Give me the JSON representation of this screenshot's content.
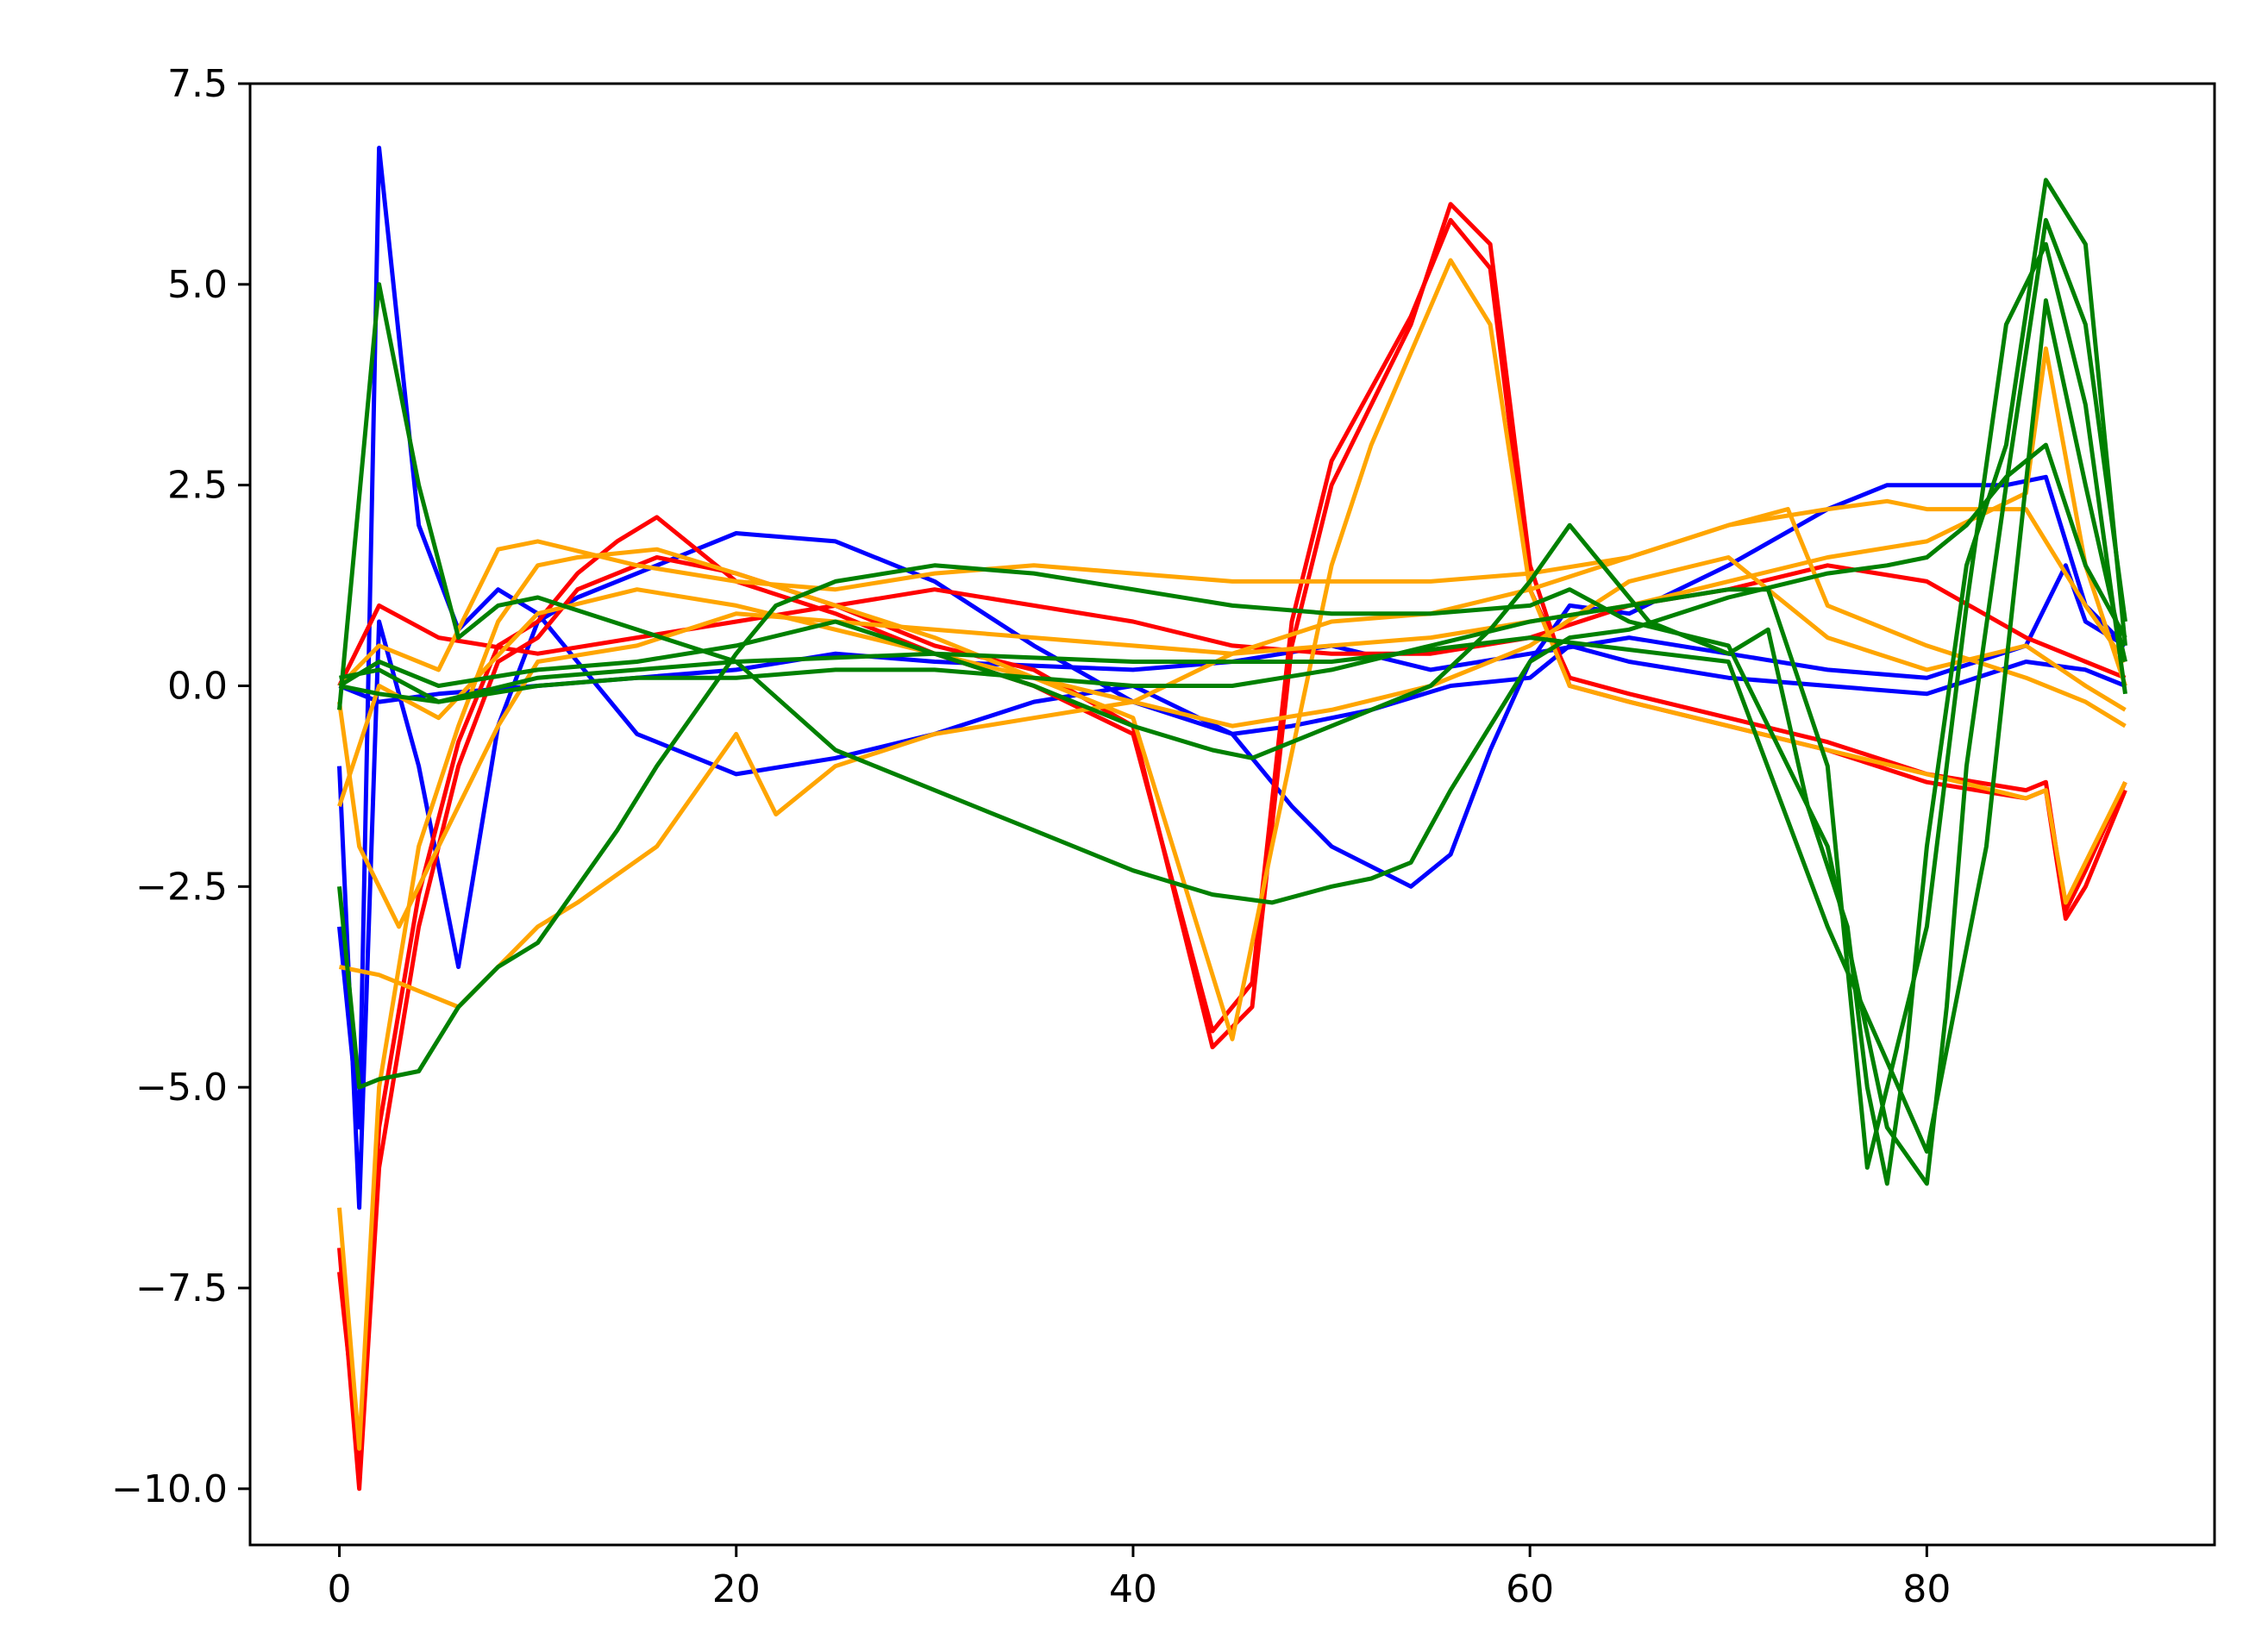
{
  "chart_data": {
    "type": "line",
    "title": "",
    "xlabel": "",
    "ylabel": "",
    "xlim": [
      -4.5,
      94.5
    ],
    "ylim": [
      -10.7,
      7.5
    ],
    "x_ticks": [
      0,
      20,
      40,
      60,
      80
    ],
    "y_ticks": [
      7.5,
      5.0,
      2.5,
      0.0,
      -2.5,
      -5.0,
      -7.5,
      -10.0
    ],
    "x_tick_labels": [
      "0",
      "20",
      "40",
      "60",
      "80"
    ],
    "y_tick_labels": [
      "7.5",
      "5.0",
      "2.5",
      "0.0",
      "−2.5",
      "−5.0",
      "−7.5",
      "−10.0"
    ],
    "grid": false,
    "legend": "none",
    "series": [
      {
        "color": "#0000ff",
        "x": [
          0,
          1,
          2,
          4,
          6,
          8,
          10,
          15,
          20,
          25,
          30,
          35,
          40,
          45,
          48,
          50,
          54,
          56,
          58,
          60,
          62,
          65,
          70,
          75,
          78,
          80,
          82,
          84,
          86,
          88,
          90
        ],
        "y": [
          -3.0,
          -5.5,
          6.7,
          2.0,
          0.7,
          1.2,
          0.9,
          -0.6,
          -1.1,
          -0.9,
          -0.6,
          -0.2,
          0.0,
          -0.6,
          -1.5,
          -2.0,
          -2.5,
          -2.1,
          -0.8,
          0.3,
          1.0,
          0.9,
          1.5,
          2.2,
          2.5,
          2.5,
          2.5,
          2.5,
          2.6,
          1.0,
          0.5
        ]
      },
      {
        "color": "#0000ff",
        "x": [
          0,
          1,
          2,
          4,
          6,
          8,
          10,
          12,
          16,
          20,
          25,
          30,
          35,
          40,
          45,
          48,
          52,
          56,
          60,
          62,
          65,
          70,
          75,
          80,
          85,
          88,
          90
        ],
        "y": [
          -1.0,
          -6.5,
          0.8,
          -1.0,
          -3.5,
          -0.5,
          0.8,
          1.1,
          1.5,
          1.9,
          1.8,
          1.3,
          0.5,
          -0.2,
          -0.6,
          -0.5,
          -0.3,
          0.0,
          0.1,
          0.5,
          0.3,
          0.1,
          0.0,
          -0.1,
          0.3,
          0.2,
          0.0
        ]
      },
      {
        "color": "#0000ff",
        "x": [
          0,
          2,
          5,
          10,
          20,
          25,
          30,
          40,
          45,
          50,
          55,
          60,
          65,
          70,
          75,
          80,
          85,
          87,
          88,
          90
        ],
        "y": [
          0.0,
          -0.2,
          -0.1,
          0.0,
          0.2,
          0.4,
          0.3,
          0.2,
          0.3,
          0.5,
          0.2,
          0.4,
          0.6,
          0.4,
          0.2,
          0.1,
          0.5,
          1.5,
          0.8,
          0.5
        ]
      },
      {
        "color": "#ff0000",
        "x": [
          0,
          1,
          2,
          4,
          6,
          8,
          10,
          12,
          16,
          20,
          25,
          30,
          35,
          40,
          44,
          46,
          48,
          50,
          52,
          54,
          56,
          58,
          60,
          62,
          65,
          70,
          75,
          80,
          85,
          86,
          87,
          88,
          90
        ],
        "y": [
          -7.0,
          -10.0,
          -6.0,
          -3.0,
          -1.0,
          0.3,
          0.6,
          1.2,
          1.6,
          1.4,
          1.0,
          0.5,
          0.2,
          -0.5,
          -4.5,
          -4.0,
          0.5,
          2.5,
          3.5,
          4.5,
          6.0,
          5.5,
          1.5,
          0.0,
          -0.2,
          -0.5,
          -0.8,
          -1.2,
          -1.4,
          -1.3,
          -2.9,
          -2.5,
          -1.3
        ]
      },
      {
        "color": "#ff0000",
        "x": [
          0,
          1,
          2,
          4,
          6,
          8,
          10,
          12,
          14,
          16,
          18,
          20,
          25,
          30,
          35,
          40,
          44,
          46,
          48,
          50,
          52,
          54,
          56,
          58,
          60,
          62,
          65,
          70,
          75,
          80,
          85,
          86,
          87,
          88,
          90
        ],
        "y": [
          -7.3,
          -9.6,
          -5.5,
          -2.6,
          -0.7,
          0.5,
          0.8,
          1.4,
          1.8,
          2.1,
          1.7,
          1.3,
          0.9,
          0.4,
          0.0,
          -0.6,
          -4.3,
          -3.7,
          0.8,
          2.8,
          3.7,
          4.6,
          5.8,
          5.2,
          1.2,
          0.1,
          -0.1,
          -0.4,
          -0.7,
          -1.1,
          -1.3,
          -1.2,
          -2.8,
          -2.3,
          -1.2
        ]
      },
      {
        "color": "#ff0000",
        "x": [
          0,
          1,
          2,
          5,
          10,
          15,
          20,
          25,
          30,
          35,
          40,
          45,
          50,
          55,
          60,
          65,
          70,
          75,
          80,
          85,
          88,
          90
        ],
        "y": [
          0.0,
          0.5,
          1.0,
          0.6,
          0.4,
          0.6,
          0.8,
          1.0,
          1.2,
          1.0,
          0.8,
          0.5,
          0.4,
          0.4,
          0.6,
          1.0,
          1.2,
          1.5,
          1.3,
          0.6,
          0.3,
          0.1
        ]
      },
      {
        "color": "#ffa500",
        "x": [
          0,
          1,
          2,
          4,
          6,
          8,
          10,
          12,
          16,
          20,
          25,
          30,
          35,
          40,
          45,
          47,
          50,
          52,
          56,
          58,
          60,
          62,
          65,
          70,
          75,
          80,
          85,
          86,
          87,
          88,
          90
        ],
        "y": [
          -6.5,
          -9.5,
          -5.0,
          -2.0,
          -0.5,
          0.8,
          1.5,
          1.6,
          1.7,
          1.4,
          1.0,
          0.6,
          0.1,
          -0.4,
          -4.4,
          -2.0,
          1.5,
          3.0,
          5.3,
          4.5,
          1.2,
          0.0,
          -0.2,
          -0.5,
          -0.8,
          -1.1,
          -1.4,
          -1.3,
          -2.7,
          -2.2,
          -1.2
        ]
      },
      {
        "color": "#ffa500",
        "x": [
          0,
          2,
          4,
          6,
          8,
          10,
          12,
          16,
          20,
          22,
          25,
          30,
          35,
          40,
          45,
          50,
          55,
          60,
          65,
          70,
          73,
          75,
          80,
          85,
          88,
          90
        ],
        "y": [
          -3.5,
          -3.6,
          -3.8,
          -4.0,
          -3.5,
          -3.0,
          -2.7,
          -2.0,
          -0.6,
          -1.6,
          -1.0,
          -0.6,
          -0.4,
          -0.2,
          0.4,
          0.8,
          0.9,
          1.2,
          1.6,
          2.0,
          2.2,
          1.0,
          0.5,
          0.1,
          -0.2,
          -0.5
        ]
      },
      {
        "color": "#ffa500",
        "x": [
          0,
          2,
          5,
          8,
          10,
          15,
          20,
          25,
          30,
          35,
          40,
          45,
          50,
          55,
          60,
          65,
          70,
          75,
          78,
          80,
          85,
          88,
          90
        ],
        "y": [
          0.0,
          0.5,
          0.2,
          1.7,
          1.8,
          1.5,
          1.3,
          1.2,
          1.4,
          1.5,
          1.4,
          1.3,
          1.3,
          1.3,
          1.4,
          1.6,
          2.0,
          2.2,
          2.3,
          2.2,
          2.2,
          1.0,
          0.3
        ]
      },
      {
        "color": "#ffa500",
        "x": [
          0,
          1,
          3,
          5,
          8,
          10,
          15,
          20,
          25,
          30,
          35,
          40,
          45,
          50,
          55,
          60,
          65,
          70,
          75,
          80,
          85,
          86,
          88,
          90
        ],
        "y": [
          -0.2,
          -2.0,
          -3.0,
          -2.0,
          -0.5,
          0.3,
          0.5,
          0.9,
          0.8,
          0.7,
          0.6,
          0.5,
          0.4,
          0.5,
          0.6,
          0.8,
          1.0,
          1.3,
          1.6,
          1.8,
          2.4,
          4.2,
          1.5,
          0.0
        ]
      },
      {
        "color": "#ffa500",
        "x": [
          0,
          2,
          5,
          10,
          15,
          20,
          25,
          30,
          35,
          40,
          45,
          50,
          55,
          60,
          65,
          70,
          75,
          80,
          85,
          88,
          90
        ],
        "y": [
          -1.5,
          0.0,
          -0.4,
          0.9,
          1.2,
          1.0,
          0.7,
          0.4,
          0.1,
          -0.2,
          -0.5,
          -0.3,
          0.0,
          0.5,
          1.3,
          1.6,
          0.6,
          0.2,
          0.5,
          0.0,
          -0.3
        ]
      },
      {
        "color": "#008000",
        "x": [
          0,
          2,
          4,
          6,
          8,
          10,
          15,
          20,
          25,
          30,
          35,
          40,
          44,
          47,
          50,
          52,
          54,
          56,
          58,
          60,
          62,
          65,
          70,
          75,
          78,
          80,
          82,
          84,
          86,
          88,
          90
        ],
        "y": [
          -0.3,
          5.0,
          2.5,
          0.6,
          1.0,
          1.1,
          0.7,
          0.3,
          -0.8,
          -1.3,
          -1.8,
          -2.3,
          -2.6,
          -2.7,
          -2.5,
          -2.4,
          -2.2,
          -1.3,
          -0.5,
          0.3,
          0.6,
          0.7,
          1.1,
          1.4,
          1.5,
          1.6,
          2.0,
          2.6,
          3.0,
          1.5,
          0.6
        ]
      },
      {
        "color": "#008000",
        "x": [
          0,
          2,
          5,
          10,
          15,
          20,
          25,
          30,
          35,
          40,
          44,
          46,
          50,
          55,
          58,
          60,
          62,
          64,
          66,
          70,
          72,
          74,
          76,
          77,
          78,
          79,
          80,
          82,
          84,
          86,
          88,
          90
        ],
        "y": [
          0.0,
          0.3,
          0.0,
          0.2,
          0.3,
          0.5,
          0.8,
          0.4,
          0.0,
          -0.5,
          -0.8,
          -0.9,
          -0.5,
          0.0,
          0.7,
          1.3,
          2.0,
          1.4,
          0.8,
          0.4,
          0.7,
          -1.5,
          -3.0,
          -5.0,
          -6.2,
          -4.5,
          -2.0,
          1.5,
          3.0,
          6.3,
          5.5,
          0.5
        ]
      },
      {
        "color": "#008000",
        "x": [
          0,
          1,
          2,
          4,
          6,
          8,
          10,
          12,
          14,
          16,
          18,
          20,
          22,
          25,
          30,
          35,
          40,
          45,
          50,
          55,
          60,
          62,
          65,
          70,
          75,
          78,
          80,
          81,
          82,
          84,
          86,
          88,
          90
        ],
        "y": [
          -2.5,
          -5.0,
          -4.9,
          -4.8,
          -4.0,
          -3.5,
          -3.2,
          -2.5,
          -1.8,
          -1.0,
          -0.3,
          0.4,
          1.0,
          1.3,
          1.5,
          1.4,
          1.2,
          1.0,
          0.9,
          0.9,
          1.0,
          1.2,
          0.8,
          0.5,
          -2.0,
          -5.5,
          -6.2,
          -4.0,
          -1.0,
          2.5,
          5.8,
          4.5,
          0.8
        ]
      },
      {
        "color": "#008000",
        "x": [
          0,
          2,
          5,
          10,
          15,
          20,
          25,
          30,
          35,
          40,
          45,
          50,
          55,
          60,
          65,
          70,
          72,
          75,
          77,
          80,
          82,
          84,
          86,
          88,
          90
        ],
        "y": [
          0.0,
          -0.1,
          -0.2,
          0.0,
          0.1,
          0.1,
          0.2,
          0.2,
          0.1,
          0.0,
          0.0,
          0.2,
          0.5,
          0.8,
          1.0,
          1.2,
          1.2,
          -1.0,
          -6.0,
          -3.0,
          1.0,
          4.5,
          5.5,
          3.5,
          -0.1
        ]
      },
      {
        "color": "#008000",
        "x": [
          0,
          2,
          5,
          10,
          20,
          30,
          40,
          50,
          60,
          70,
          75,
          80,
          83,
          86,
          88,
          90
        ],
        "y": [
          0.1,
          0.2,
          -0.2,
          0.1,
          0.3,
          0.4,
          0.3,
          0.3,
          0.6,
          0.3,
          -3.0,
          -5.8,
          -2.0,
          4.8,
          2.5,
          0.3
        ]
      }
    ]
  }
}
